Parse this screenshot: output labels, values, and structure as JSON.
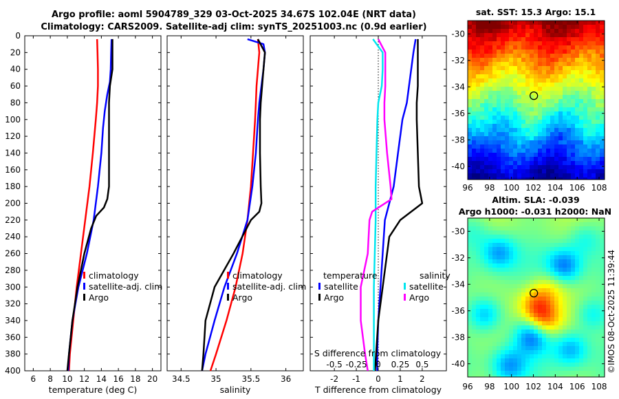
{
  "title": {
    "line1": "Argo profile: aoml 5904789_329 03-Oct-2025 34.67S 102.04E (NRT data)",
    "line2": "Climatology: CARS2009. Satellite-adj clim: synTS_20251003.nc (0.9d earlier)"
  },
  "copyright": "©IMOS 08-Oct-2025 11:39:44",
  "colors": {
    "climatology": "#ff0000",
    "satellite": "#0000ff",
    "argo": "#000000",
    "sal_satellite": "#00e5ee",
    "sal_argo": "#ff00ff"
  },
  "chart_data": [
    {
      "id": "temperature",
      "type": "line",
      "xlabel": "temperature (deg C)",
      "xlim": [
        5,
        21
      ],
      "ylim": [
        400,
        0
      ],
      "xticks": [
        6,
        8,
        10,
        12,
        14,
        16,
        18,
        20
      ],
      "yticks": [
        0,
        20,
        40,
        60,
        80,
        100,
        120,
        140,
        160,
        180,
        200,
        220,
        240,
        260,
        280,
        300,
        320,
        340,
        360,
        380,
        400
      ],
      "legend": [
        "climatology",
        "satellite-adj. clim",
        "Argo"
      ],
      "series": [
        {
          "name": "climatology",
          "color": "#ff0000",
          "depth": [
            4,
            20,
            40,
            60,
            80,
            100,
            140,
            180,
            220,
            260,
            300,
            340,
            380,
            400
          ],
          "values": [
            13.5,
            13.55,
            13.6,
            13.6,
            13.5,
            13.35,
            13.0,
            12.6,
            12.1,
            11.6,
            11.1,
            10.7,
            10.3,
            10.2
          ]
        },
        {
          "name": "satellite-adj. clim",
          "color": "#0000ff",
          "depth": [
            4,
            20,
            40,
            55,
            70,
            90,
            110,
            140,
            180,
            220,
            260,
            300,
            340,
            380,
            400
          ],
          "values": [
            15.2,
            15.15,
            15.1,
            15.0,
            14.7,
            14.4,
            14.2,
            14.0,
            13.6,
            13.1,
            12.3,
            11.3,
            10.6,
            10.2,
            10.1
          ]
        },
        {
          "name": "Argo",
          "color": "#000000",
          "depth": [
            4,
            20,
            40,
            60,
            80,
            100,
            140,
            180,
            195,
            205,
            215,
            230,
            260,
            300,
            340,
            380,
            400
          ],
          "values": [
            15.3,
            15.3,
            15.3,
            15.0,
            14.9,
            14.9,
            14.9,
            14.9,
            14.7,
            14.3,
            13.4,
            12.8,
            12.0,
            11.2,
            10.6,
            10.2,
            10.0
          ]
        }
      ]
    },
    {
      "id": "salinity",
      "type": "line",
      "xlabel": "salinity",
      "xlim": [
        34.3,
        36.25
      ],
      "ylim": [
        400,
        0
      ],
      "xticks": [
        34.5,
        35,
        35.5,
        36
      ],
      "legend": [
        "climatology",
        "satellite-adj. clim",
        "Argo"
      ],
      "series": [
        {
          "name": "climatology",
          "color": "#ff0000",
          "depth": [
            4,
            20,
            40,
            60,
            80,
            100,
            140,
            180,
            220,
            260,
            300,
            340,
            380,
            400
          ],
          "values": [
            35.6,
            35.62,
            35.6,
            35.58,
            35.57,
            35.56,
            35.53,
            35.5,
            35.45,
            35.38,
            35.28,
            35.15,
            35.0,
            34.92
          ]
        },
        {
          "name": "satellite-adj. clim",
          "color": "#0000ff",
          "depth": [
            4,
            10,
            20,
            40,
            60,
            80,
            100,
            140,
            180,
            220,
            260,
            300,
            340,
            380,
            400
          ],
          "values": [
            35.45,
            35.68,
            35.7,
            35.68,
            35.65,
            35.62,
            35.6,
            35.57,
            35.52,
            35.45,
            35.3,
            35.12,
            34.98,
            34.85,
            34.8
          ]
        },
        {
          "name": "Argo",
          "color": "#000000",
          "depth": [
            4,
            20,
            40,
            60,
            80,
            100,
            140,
            180,
            200,
            210,
            220,
            260,
            300,
            340,
            380,
            400
          ],
          "values": [
            35.6,
            35.7,
            35.68,
            35.66,
            35.64,
            35.63,
            35.63,
            35.64,
            35.65,
            35.62,
            35.5,
            35.25,
            34.98,
            34.85,
            34.82,
            34.8
          ]
        }
      ]
    },
    {
      "id": "difference",
      "type": "line",
      "xlabel": "T difference from climatology",
      "xlabel_top": "S difference from climatology",
      "xlim": [
        -3.1,
        3.1
      ],
      "ylim": [
        400,
        0
      ],
      "xticks": [
        -2,
        -1,
        0,
        1,
        2
      ],
      "xticks_top": [
        -0.5,
        -0.25,
        0,
        0.25,
        0.5
      ],
      "xticks_top_labels": [
        "-0.5",
        "-0.25",
        "0",
        "0.25",
        "0.5"
      ],
      "legend_left_title": "temperature",
      "legend_right_title": "salinity",
      "legend_left": [
        "satellite",
        "Argo"
      ],
      "legend_right": [
        "satellite",
        "Argo"
      ],
      "series": [
        {
          "name": "T satellite",
          "color": "#0000ff",
          "depth": [
            4,
            20,
            40,
            60,
            80,
            100,
            140,
            180,
            220,
            260,
            300,
            340,
            380,
            400
          ],
          "values": [
            1.7,
            1.6,
            1.5,
            1.4,
            1.3,
            1.1,
            0.9,
            0.7,
            0.3,
            0.2,
            0.1,
            0.0,
            -0.05,
            -0.05
          ]
        },
        {
          "name": "T Argo",
          "color": "#000000",
          "depth": [
            4,
            20,
            40,
            60,
            80,
            100,
            140,
            180,
            200,
            220,
            240,
            260,
            300,
            340,
            380,
            400
          ],
          "values": [
            1.8,
            1.8,
            1.8,
            1.8,
            1.75,
            1.75,
            1.8,
            1.85,
            2.0,
            1.0,
            0.5,
            0.4,
            0.2,
            0.0,
            -0.1,
            -0.15
          ]
        },
        {
          "name": "S satellite",
          "color": "#00e5ee",
          "depth": [
            4,
            20,
            40,
            60,
            80,
            100,
            140,
            180,
            220,
            260,
            300,
            340,
            380,
            400
          ],
          "values": [
            -0.06,
            0.05,
            0.05,
            0.04,
            0.0,
            -0.01,
            -0.02,
            -0.03,
            -0.03,
            -0.04,
            -0.05,
            -0.05,
            -0.05,
            -0.05
          ]
        },
        {
          "name": "S Argo",
          "color": "#ff00ff",
          "depth": [
            4,
            20,
            40,
            60,
            80,
            100,
            140,
            180,
            195,
            210,
            220,
            260,
            300,
            340,
            380,
            400
          ],
          "values": [
            0.0,
            0.08,
            0.08,
            0.08,
            0.07,
            0.07,
            0.1,
            0.14,
            0.15,
            -0.07,
            -0.1,
            -0.12,
            -0.2,
            -0.2,
            -0.15,
            -0.12
          ]
        }
      ]
    },
    {
      "id": "sst_map",
      "type": "heatmap",
      "title": "sat. SST: 15.3 Argo: 15.1",
      "xlim": [
        96,
        108.5
      ],
      "ylim": [
        -41,
        -29
      ],
      "xticks": [
        96,
        98,
        100,
        102,
        104,
        106,
        108
      ],
      "yticks": [
        -30,
        -32,
        -34,
        -36,
        -38,
        -40
      ],
      "argo_position": [
        102.04,
        -34.67
      ]
    },
    {
      "id": "sla_map",
      "type": "heatmap",
      "title": "Altim. SLA: -0.039",
      "subtitle": "Argo h1000: -0.031 h2000: NaN",
      "xlim": [
        96,
        108.5
      ],
      "ylim": [
        -41,
        -29
      ],
      "xticks": [
        96,
        98,
        100,
        102,
        104,
        106,
        108
      ],
      "yticks": [
        -30,
        -32,
        -34,
        -36,
        -38,
        -40
      ],
      "argo_position": [
        102.04,
        -34.67
      ]
    }
  ]
}
